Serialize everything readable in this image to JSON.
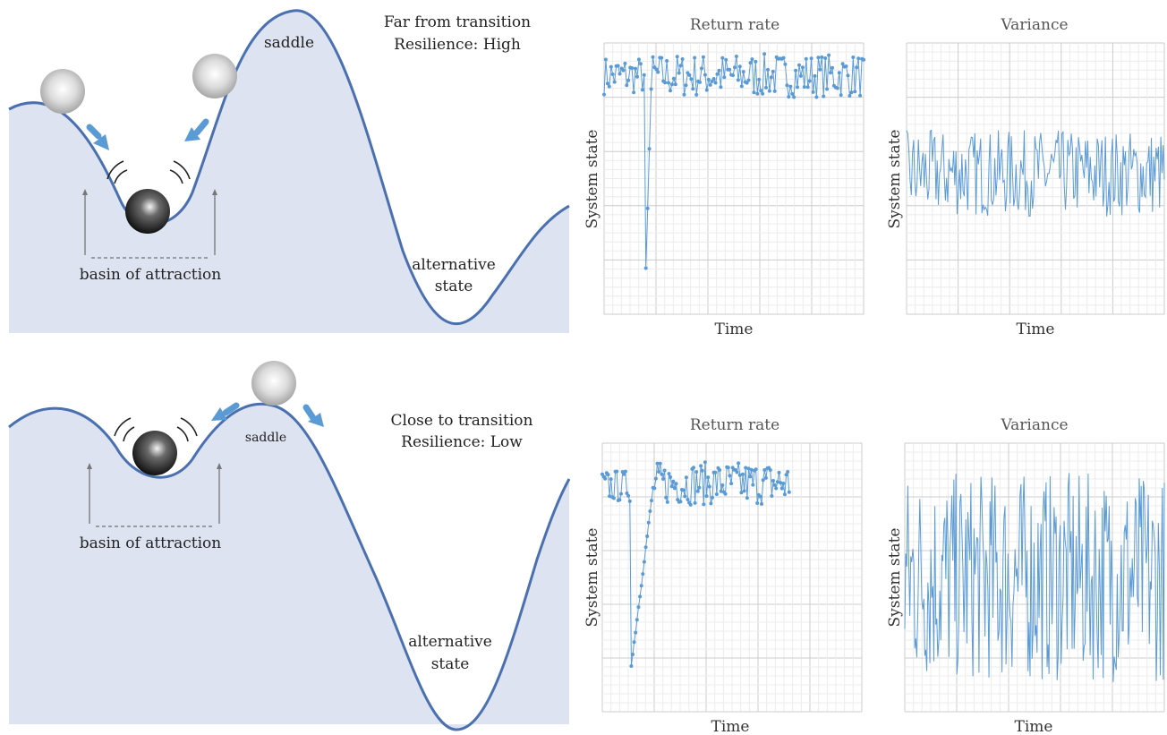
{
  "top": {
    "condition_line1": "Far from transition",
    "condition_line2": "Resilience: High",
    "saddle": "saddle",
    "basin": "basin of attraction",
    "alt_line1": "alternative",
    "alt_line2": "state",
    "return_title": "Return rate",
    "variance_title": "Variance",
    "xlabel": "Time",
    "ylabel": "System state"
  },
  "bottom": {
    "condition_line1": "Close to transition",
    "condition_line2": "Resilience: Low",
    "saddle": "saddle",
    "basin": "basin of attraction",
    "alt_line1": "alternative",
    "alt_line2": "state",
    "return_title": "Return rate",
    "variance_title": "Variance",
    "xlabel": "Time",
    "ylabel": "System state"
  },
  "colors": {
    "landscape_fill": "#dde3f1",
    "landscape_line": "#4a70b0",
    "series": "#5b9bd5",
    "arrow": "#5b9bd5",
    "grid_major": "#cccccc",
    "grid_minor": "#ececec"
  }
}
